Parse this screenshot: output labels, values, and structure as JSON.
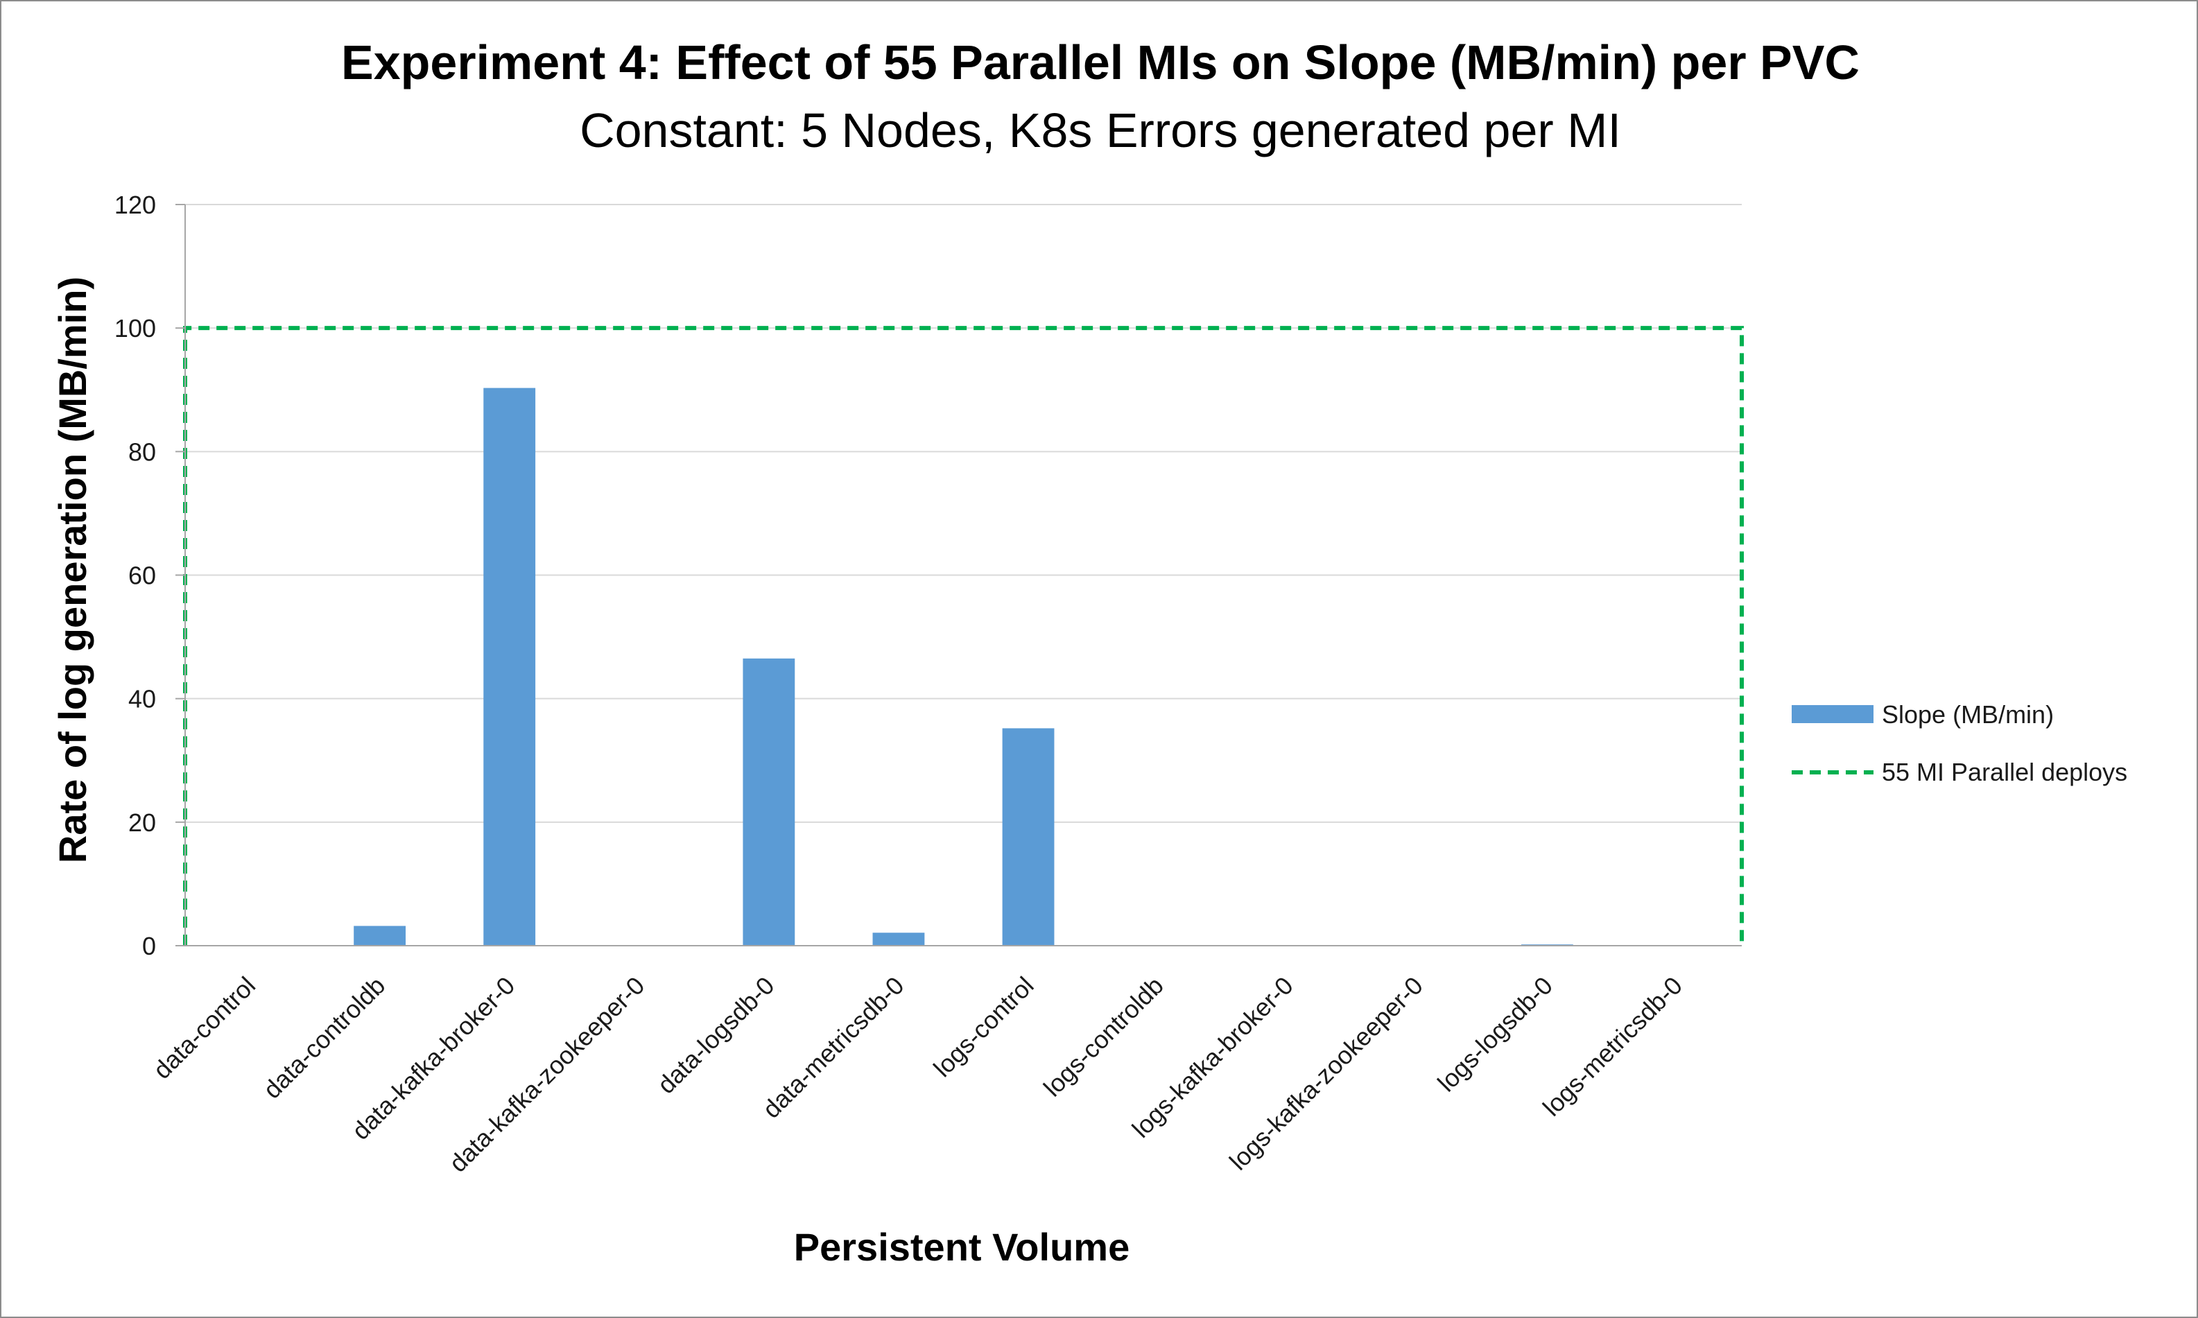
{
  "chart_data": {
    "type": "bar",
    "title": "Experiment 4: Effect of 55 Parallel MIs on Slope (MB/min) per PVC",
    "subtitle": "Constant: 5 Nodes, K8s Errors generated per MI",
    "xlabel": "Persistent Volume",
    "ylabel": "Rate of log generation (MB/min)",
    "ylim": [
      0,
      120
    ],
    "yticks": [
      0,
      20,
      40,
      60,
      80,
      100,
      120
    ],
    "categories": [
      "data-control",
      "data-controldb",
      "data-kafka-broker-0",
      "data-kafka-zookeeper-0",
      "data-logsdb-0",
      "data-metricsdb-0",
      "logs-control",
      "logs-controldb",
      "logs-kafka-broker-0",
      "logs-kafka-zookeeper-0",
      "logs-logsdb-0",
      "logs-metricsdb-0"
    ],
    "series": [
      {
        "name": "Slope (MB/min)",
        "color": "#5b9bd5",
        "values": [
          0,
          3.2,
          90.3,
          0,
          46.5,
          2.1,
          35.2,
          0,
          0,
          0,
          0.2,
          0
        ]
      }
    ],
    "reference": {
      "name": "55 MI Parallel deploys",
      "value": 100,
      "color": "#00b050",
      "style": "dashed"
    },
    "grid": true,
    "legend_position": "right"
  }
}
